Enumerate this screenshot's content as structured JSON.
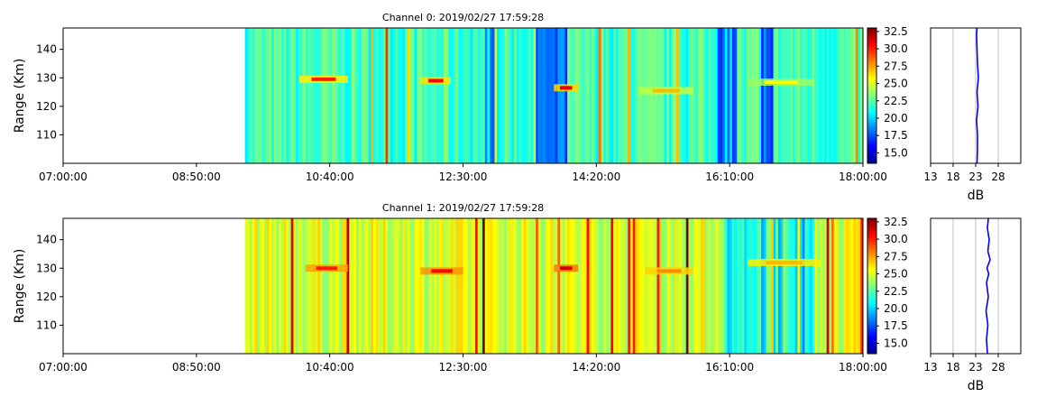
{
  "chart_data": [
    {
      "type": "heatmap",
      "title": "Channel 0: 2019/02/27 17:59:28",
      "ylabel": "Range (Km)",
      "xlabel": "",
      "x_ticks": [
        "07:00:00",
        "08:50:00",
        "10:40:00",
        "12:30:00",
        "14:20:00",
        "16:10:00",
        "18:00:00"
      ],
      "xlim": [
        "07:00:00",
        "18:00:00"
      ],
      "y_ticks": [
        110,
        120,
        130,
        140
      ],
      "ylim": [
        100,
        147.5
      ],
      "data_start": "09:30:00",
      "colorbar": {
        "ticks": [
          "15.0",
          "17.5",
          "20.0",
          "22.5",
          "25.0",
          "27.5",
          "30.0",
          "32.5"
        ],
        "range": [
          13.5,
          33.0
        ],
        "colormap": "jet"
      },
      "background_level_db": 22.0,
      "low_level_bands": [
        {
          "start": "12:48:00",
          "end": "13:00:00"
        },
        {
          "start": "13:25:00",
          "end": "13:55:00"
        },
        {
          "start": "16:00:00",
          "end": "16:15:00"
        },
        {
          "start": "16:35:00",
          "end": "16:45:00"
        }
      ],
      "echoes": [
        {
          "start": "10:15:00",
          "end": "10:55:00",
          "range_km": 129.5,
          "peak_db": 30.0
        },
        {
          "start": "11:55:00",
          "end": "12:20:00",
          "range_km": 129.0,
          "peak_db": 30.5
        },
        {
          "start": "13:45:00",
          "end": "14:05:00",
          "range_km": 126.5,
          "peak_db": 31.0
        },
        {
          "start": "14:55:00",
          "end": "15:40:00",
          "range_km": 125.5,
          "peak_db": 27.0
        },
        {
          "start": "16:25:00",
          "end": "17:20:00",
          "range_km": 128.5,
          "peak_db": 25.5
        }
      ],
      "profile": {
        "xlabel": "dB",
        "x_ticks": [
          13,
          18,
          23,
          28
        ],
        "xlim": [
          13,
          33
        ],
        "grid": true,
        "color": "#0000ff",
        "y": [
          100,
          105,
          110,
          115,
          120,
          125,
          130,
          135,
          140,
          145,
          147.5
        ],
        "x": [
          23.3,
          23.4,
          23.4,
          23.2,
          23.5,
          23.3,
          23.6,
          23.4,
          23.3,
          23.2,
          23.3
        ]
      }
    },
    {
      "type": "heatmap",
      "title": "Channel 1: 2019/02/27 17:59:28",
      "ylabel": "Range (Km)",
      "xlabel": "",
      "x_ticks": [
        "07:00:00",
        "08:50:00",
        "10:40:00",
        "12:30:00",
        "14:20:00",
        "16:10:00",
        "18:00:00"
      ],
      "xlim": [
        "07:00:00",
        "18:00:00"
      ],
      "y_ticks": [
        110,
        120,
        130,
        140
      ],
      "ylim": [
        100,
        147.5
      ],
      "data_start": "09:30:00",
      "colorbar": {
        "ticks": [
          "15.0",
          "17.5",
          "20.0",
          "22.5",
          "25.0",
          "27.5",
          "30.0",
          "32.5"
        ],
        "range": [
          13.5,
          33.0
        ],
        "colormap": "jet"
      },
      "background_level_db": 25.0,
      "low_level_bands": [
        {
          "start": "16:05:00",
          "end": "17:20:00"
        }
      ],
      "echoes": [
        {
          "start": "10:20:00",
          "end": "10:55:00",
          "range_km": 130.0,
          "peak_db": 30.0
        },
        {
          "start": "11:55:00",
          "end": "12:30:00",
          "range_km": 129.0,
          "peak_db": 30.5
        },
        {
          "start": "13:45:00",
          "end": "14:05:00",
          "range_km": 130.0,
          "peak_db": 31.5
        },
        {
          "start": "15:00:00",
          "end": "15:40:00",
          "range_km": 129.0,
          "peak_db": 28.0
        },
        {
          "start": "16:25:00",
          "end": "17:25:00",
          "range_km": 132.0,
          "peak_db": 27.0
        }
      ],
      "profile": {
        "xlabel": "dB",
        "x_ticks": [
          13,
          18,
          23,
          28
        ],
        "xlim": [
          13,
          33
        ],
        "grid": true,
        "color": "#0000ff",
        "y": [
          100,
          105,
          110,
          115,
          120,
          125,
          128,
          130,
          133,
          136,
          140,
          144,
          147.5
        ],
        "x": [
          25.6,
          25.4,
          25.7,
          25.3,
          25.8,
          25.4,
          25.9,
          25.5,
          26.2,
          25.7,
          26.0,
          25.6,
          25.8
        ]
      }
    }
  ]
}
